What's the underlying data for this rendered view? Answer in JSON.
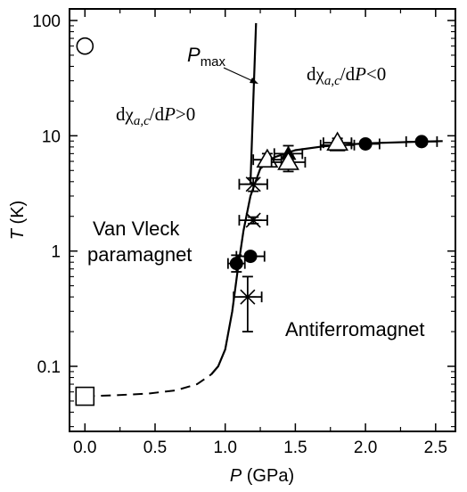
{
  "chart_data": {
    "type": "scatter",
    "xlabel": {
      "var": "P",
      "unit": " (GPa)"
    },
    "ylabel": {
      "var": "T",
      "unit": " (K)"
    },
    "xlim": [
      -0.1,
      2.6
    ],
    "ylim": [
      0.03,
      100
    ],
    "y_scale": "log",
    "grid": false,
    "x_ticks": [
      "0.0",
      "0.5",
      "1.0",
      "1.5",
      "2.0",
      "2.5"
    ],
    "x_tick_values": [
      0,
      0.5,
      1.0,
      1.5,
      2.0,
      2.5
    ],
    "y_ticks": [
      "0.1",
      "1",
      "10",
      "100"
    ],
    "y_tick_values": [
      0.1,
      1,
      10,
      100
    ],
    "annotations": {
      "pmax_var": "P",
      "pmax_sub": "max",
      "vanvleck_line1": "Van Vleck",
      "vanvleck_line2": "paramagnet",
      "antiferro": "Antiferromagnet",
      "dchi_pre": "dχ",
      "dchi_sub": "a,c",
      "dchi_mid": "/d",
      "dchi_var": "P",
      "pos_sign": ">0",
      "neg_sign": "<0"
    },
    "series": [
      {
        "marker": "filled-circle",
        "points": [
          {
            "x": 1.08,
            "y": 0.78,
            "xerr": 0.06,
            "yerr_lo": 0.12,
            "yerr_hi": 0.14
          },
          {
            "x": 1.18,
            "y": 0.9,
            "xerr": 0.1,
            "yerr_lo": 0,
            "yerr_hi": 0
          },
          {
            "x": 2.0,
            "y": 8.5,
            "xerr": 0.1,
            "yerr_lo": 0,
            "yerr_hi": 0
          },
          {
            "x": 2.4,
            "y": 8.9,
            "xerr": 0.11,
            "yerr_lo": 0,
            "yerr_hi": 0
          }
        ]
      },
      {
        "marker": "filled-triangle",
        "points": [
          {
            "x": 1.45,
            "y": 7.0,
            "xerr": 0.1,
            "yerr_lo": 1.2,
            "yerr_hi": 1.2
          },
          {
            "x": 1.8,
            "y": 8.3,
            "xerr": 0.12,
            "yerr_lo": 0.8,
            "yerr_hi": 0.8
          }
        ]
      },
      {
        "marker": "open-triangle",
        "points": [
          {
            "x": 1.3,
            "y": 6.2,
            "xerr": 0.1,
            "yerr_lo": 0.8,
            "yerr_hi": 0.8
          },
          {
            "x": 1.45,
            "y": 5.9,
            "xerr": 0.12,
            "yerr_lo": 1.0,
            "yerr_hi": 1.0
          },
          {
            "x": 1.8,
            "y": 8.7,
            "xerr": 0.1,
            "yerr_lo": 0.8,
            "yerr_hi": 0.8
          }
        ]
      },
      {
        "marker": "asterisk",
        "points": [
          {
            "x": 1.2,
            "y": 3.8,
            "xerr": 0.1,
            "yerr_lo": 0.5,
            "yerr_hi": 0.5
          },
          {
            "x": 1.2,
            "y": 1.85,
            "xerr": 0.1,
            "yerr_lo": 0.12,
            "yerr_hi": 0.12
          },
          {
            "x": 1.16,
            "y": 0.4,
            "xerr": 0.1,
            "yerr_lo": 0.2,
            "yerr_hi": 0.2
          }
        ]
      },
      {
        "marker": "open-circle",
        "points": [
          {
            "x": 0.0,
            "y": 60
          }
        ]
      },
      {
        "marker": "open-square",
        "points": [
          {
            "x": 0.0,
            "y": 0.055
          }
        ]
      }
    ],
    "phase_boundary": [
      {
        "x": 0.0,
        "y": 0.055
      },
      {
        "x": 0.2,
        "y": 0.056
      },
      {
        "x": 0.45,
        "y": 0.058
      },
      {
        "x": 0.65,
        "y": 0.062
      },
      {
        "x": 0.8,
        "y": 0.07
      },
      {
        "x": 0.9,
        "y": 0.085
      },
      {
        "x": 0.95,
        "y": 0.1
      },
      {
        "x": 1.0,
        "y": 0.14
      },
      {
        "x": 1.05,
        "y": 0.3
      },
      {
        "x": 1.09,
        "y": 0.7
      },
      {
        "x": 1.13,
        "y": 1.5
      },
      {
        "x": 1.18,
        "y": 3.0
      },
      {
        "x": 1.25,
        "y": 5.2
      },
      {
        "x": 1.35,
        "y": 6.5
      },
      {
        "x": 1.5,
        "y": 7.5
      },
      {
        "x": 1.7,
        "y": 8.1
      },
      {
        "x": 2.0,
        "y": 8.6
      },
      {
        "x": 2.4,
        "y": 8.9
      },
      {
        "x": 2.55,
        "y": 9.0
      }
    ],
    "phase_boundary_dashed_below_x": 0.93,
    "pmax_line": [
      {
        "x": 1.18,
        "y": 3.8
      },
      {
        "x": 1.2,
        "y": 20
      },
      {
        "x": 1.22,
        "y": 95
      }
    ]
  }
}
